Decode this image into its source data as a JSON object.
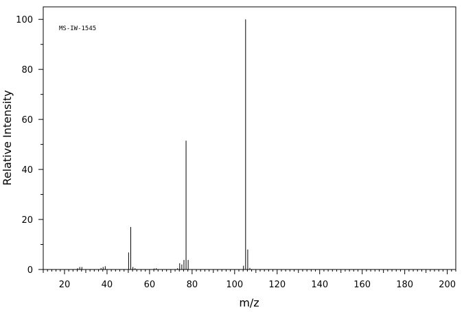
{
  "chart_data": {
    "type": "bar",
    "annotation": "MS-IW-1545",
    "xlabel": "m/z",
    "ylabel": "Relative Intensity",
    "xlim": [
      10,
      204
    ],
    "ylim": [
      0,
      105
    ],
    "x_ticks": [
      20,
      40,
      60,
      80,
      100,
      120,
      140,
      160,
      180,
      200
    ],
    "y_ticks": [
      0,
      20,
      40,
      60,
      80,
      100
    ],
    "grid": false,
    "peaks": [
      {
        "mz": 26,
        "intensity": 0.5
      },
      {
        "mz": 27,
        "intensity": 1.0
      },
      {
        "mz": 28,
        "intensity": 1.0
      },
      {
        "mz": 37,
        "intensity": 0.6
      },
      {
        "mz": 38,
        "intensity": 1.0
      },
      {
        "mz": 39,
        "intensity": 1.3
      },
      {
        "mz": 50,
        "intensity": 6.8
      },
      {
        "mz": 51,
        "intensity": 17.0
      },
      {
        "mz": 52,
        "intensity": 1.0
      },
      {
        "mz": 53,
        "intensity": 0.5
      },
      {
        "mz": 62,
        "intensity": 0.4
      },
      {
        "mz": 63,
        "intensity": 0.5
      },
      {
        "mz": 73,
        "intensity": 0.5
      },
      {
        "mz": 74,
        "intensity": 2.5
      },
      {
        "mz": 75,
        "intensity": 2.0
      },
      {
        "mz": 76,
        "intensity": 3.8
      },
      {
        "mz": 77,
        "intensity": 51.5
      },
      {
        "mz": 78,
        "intensity": 3.8
      },
      {
        "mz": 104,
        "intensity": 1.5
      },
      {
        "mz": 105,
        "intensity": 100.0
      },
      {
        "mz": 106,
        "intensity": 8.0
      },
      {
        "mz": 107,
        "intensity": 0.6
      }
    ]
  }
}
